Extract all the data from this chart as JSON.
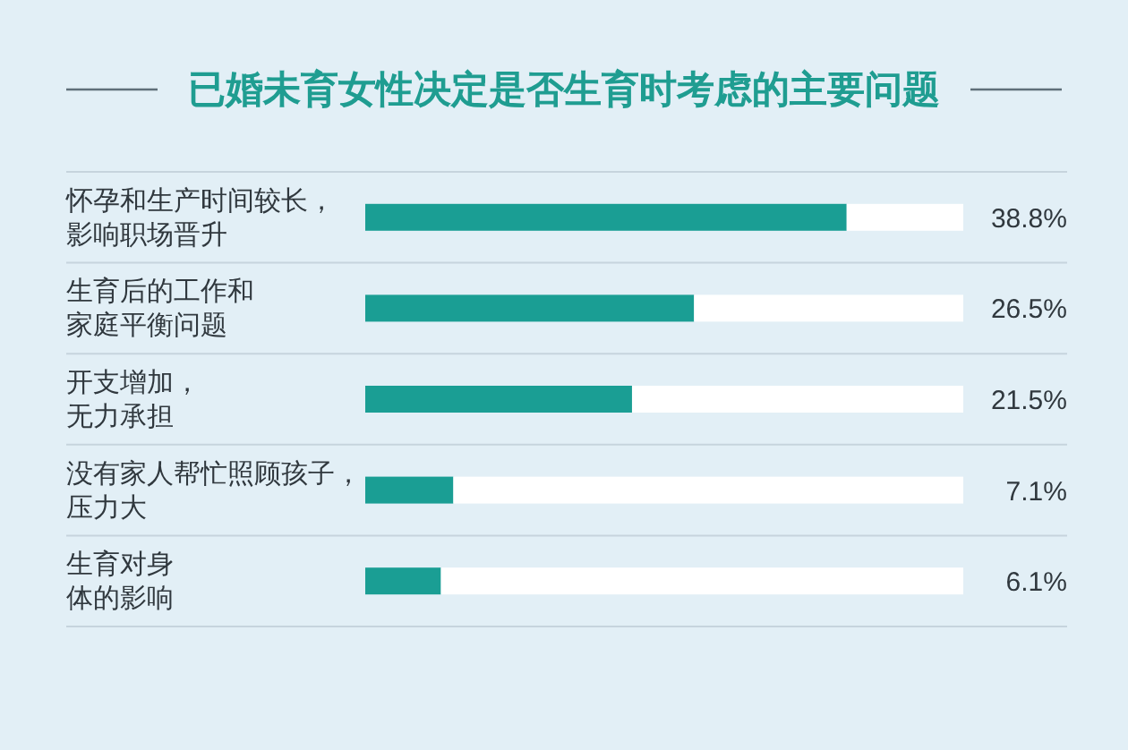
{
  "chart_data": {
    "type": "bar",
    "orientation": "horizontal",
    "stacked": true,
    "title": "已婚未育女性决定是否生育时考虑的主要问题",
    "categories": [
      "怀孕和生产时间较长，影响职场晋升",
      "生育后的工作和家庭平衡问题",
      "开支增加，无力承担",
      "没有家人帮忙照顾孩子，压力大",
      "生育对身体的影响"
    ],
    "series": [
      {
        "color": "#1a9e94",
        "values": [
          38.8,
          26.5,
          21.5,
          7.1,
          6.1
        ],
        "value_labels": [
          "38.8%",
          "26.5%",
          "21.5%",
          "7.1%",
          "6.1%"
        ]
      },
      {
        "color": "#ffffff",
        "values": [
          9.4,
          21.7,
          26.7,
          41.1,
          42.1
        ]
      }
    ]
  }
}
